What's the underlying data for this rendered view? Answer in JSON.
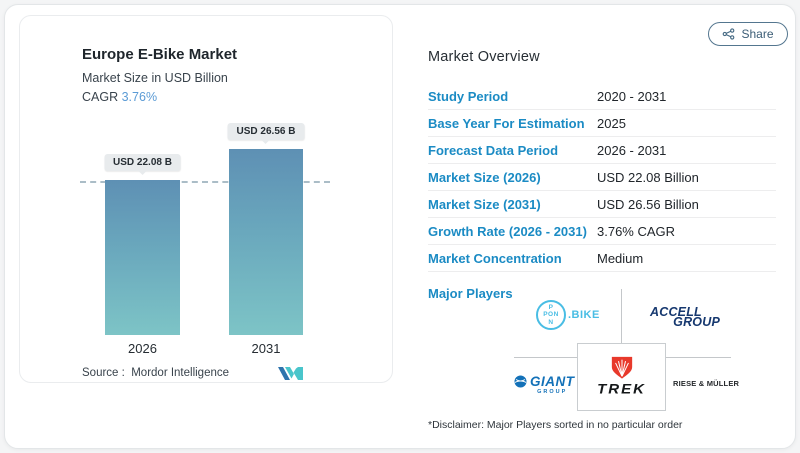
{
  "share": {
    "label": "Share"
  },
  "chart_data": {
    "type": "bar",
    "title": "Europe E-Bike Market",
    "subtitle": "Market Size in USD Billion",
    "cagr_label": "CAGR",
    "cagr_value": "3.76%",
    "categories": [
      "2026",
      "2031"
    ],
    "values": [
      22.08,
      26.56
    ],
    "bar_labels": [
      "USD 22.08 B",
      "USD 26.56 B"
    ],
    "unit": "USD Billion",
    "ylabel": "",
    "xlabel": "",
    "grid": "off",
    "reference_line": "dashed line at 2026 value level",
    "source_label": "Source :",
    "source_value": "Mordor Intelligence",
    "colors": {
      "bar_top": "#5e90b4",
      "bar_bottom": "#7dc4c6",
      "cagr_accent": "#5b9bd5"
    }
  },
  "overview": {
    "heading": "Market Overview",
    "accent_color": "#1b8bc4",
    "rows": [
      {
        "label": "Study Period",
        "value": "2020 - 2031"
      },
      {
        "label": "Base Year For Estimation",
        "value": "2025"
      },
      {
        "label": "Forecast Data Period",
        "value": "2026 - 2031"
      },
      {
        "label": "Market Size (2026)",
        "value": "USD 22.08 Billion"
      },
      {
        "label": "Market Size (2031)",
        "value": "USD 26.56 Billion"
      },
      {
        "label": "Growth Rate (2026 - 2031)",
        "value": "3.76% CAGR"
      },
      {
        "label": "Market Concentration",
        "value": "Medium"
      }
    ],
    "major_players_label": "Major Players",
    "players": {
      "pon": {
        "top": "P",
        "mid": "PON",
        "bottom": "N",
        "suffix": ".BIKE",
        "color": "#49bde4"
      },
      "accell": {
        "line1": "ACCELL",
        "line2": "GROUP",
        "color": "#16386f"
      },
      "giant": {
        "name": "GIANT",
        "sub": "GROUP",
        "color": "#1371b8"
      },
      "trek": {
        "name": "TREK",
        "shield_color": "#e8392b"
      },
      "riese": {
        "name": "RIESE & MÜLLER"
      }
    },
    "disclaimer": "*Disclaimer: Major Players sorted in no particular order"
  }
}
